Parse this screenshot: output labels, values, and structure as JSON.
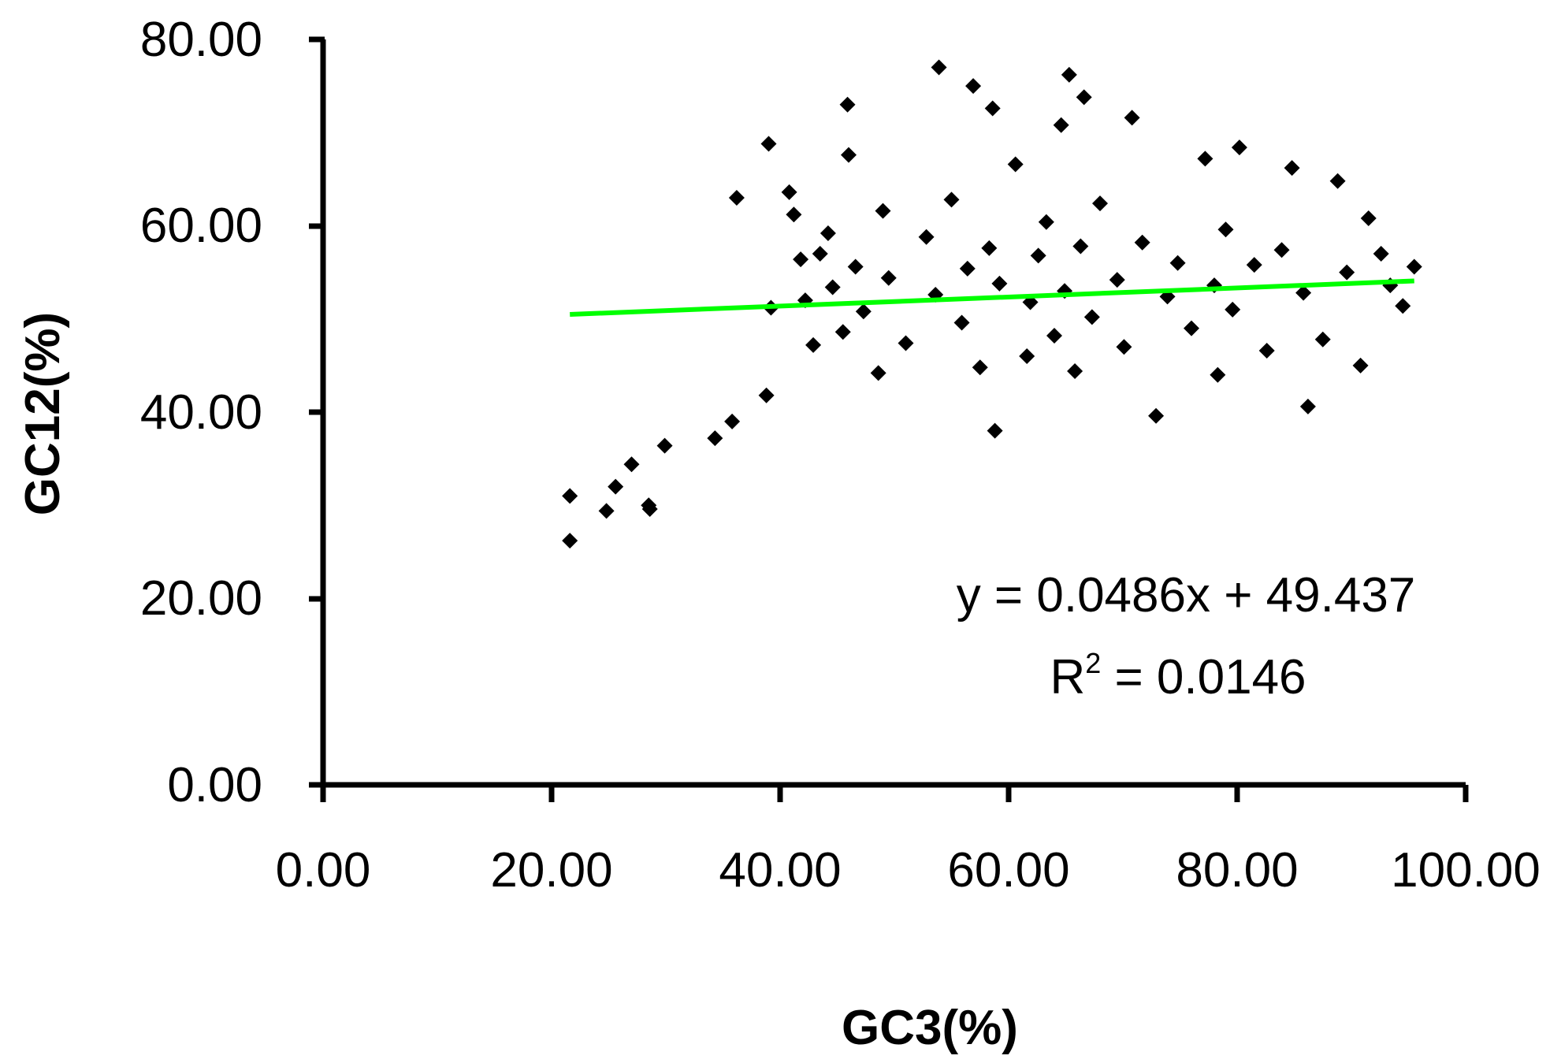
{
  "chart_data": {
    "type": "scatter",
    "xlabel": "GC3(%)",
    "ylabel": "GC12(%)",
    "xlim": [
      0,
      100
    ],
    "ylim": [
      0,
      80
    ],
    "xticks": [
      "0.00",
      "20.00",
      "40.00",
      "60.00",
      "80.00",
      "100.00"
    ],
    "yticks": [
      "0.00",
      "20.00",
      "40.00",
      "60.00",
      "80.00"
    ],
    "grid": false,
    "legend": "none",
    "marker": "diamond",
    "colors": {
      "points": "#000000",
      "trendline": "#00ff00"
    },
    "series": [
      {
        "x": [
          21.6,
          21.6,
          24.8,
          25.6,
          27.0,
          28.5,
          28.6,
          29.9,
          34.3,
          35.8,
          36.2,
          38.8,
          39.0,
          39.2,
          40.8,
          41.2,
          41.8,
          42.2,
          42.9,
          43.5,
          44.2,
          44.6,
          45.5,
          45.9,
          46.0,
          46.6,
          47.3,
          48.6,
          49.0,
          49.5,
          51.0,
          52.8,
          53.6,
          53.9,
          55.0,
          55.9,
          56.4,
          56.9,
          57.5,
          58.3,
          58.6,
          58.8,
          59.2,
          60.6,
          61.6,
          61.9,
          62.6,
          63.3,
          64.0,
          64.6,
          64.9,
          65.3,
          65.8,
          66.3,
          66.6,
          67.3,
          68.0,
          69.5,
          70.1,
          70.8,
          71.7,
          72.9,
          73.9,
          74.8,
          76.0,
          77.2,
          78.0,
          78.3,
          79.0,
          79.6,
          80.2,
          81.5,
          82.6,
          83.9,
          84.8,
          85.8,
          86.2,
          87.5,
          88.8,
          89.6,
          90.8,
          91.5,
          92.6,
          93.4,
          94.5,
          95.5
        ],
        "y": [
          31.0,
          26.2,
          29.4,
          32.0,
          34.4,
          30.0,
          29.6,
          36.4,
          37.2,
          39.0,
          63.0,
          41.8,
          68.8,
          51.2,
          63.6,
          61.2,
          56.4,
          52.0,
          47.2,
          57.0,
          59.2,
          53.4,
          48.6,
          73.0,
          67.6,
          55.6,
          50.8,
          44.2,
          61.6,
          54.4,
          47.4,
          58.8,
          52.6,
          77.0,
          62.8,
          49.6,
          55.4,
          75.0,
          44.8,
          57.6,
          72.6,
          38.0,
          53.8,
          66.6,
          46.0,
          51.8,
          56.8,
          60.4,
          48.2,
          70.8,
          53.0,
          76.2,
          44.4,
          57.8,
          73.8,
          50.2,
          62.4,
          54.2,
          47.0,
          71.6,
          58.2,
          39.6,
          52.4,
          56.0,
          49.0,
          67.2,
          53.6,
          44.0,
          59.6,
          51.0,
          68.4,
          55.8,
          46.6,
          57.4,
          66.2,
          52.8,
          40.6,
          47.8,
          64.8,
          55.0,
          45.0,
          60.8,
          57.0,
          53.6,
          51.4,
          55.6
        ]
      }
    ],
    "trendline": {
      "slope": 0.0486,
      "intercept": 49.437,
      "x_range": [
        21.6,
        95.5
      ]
    },
    "annotations": [
      "y = 0.0486x + 49.437",
      "R",
      "2",
      " = 0.0146"
    ]
  }
}
